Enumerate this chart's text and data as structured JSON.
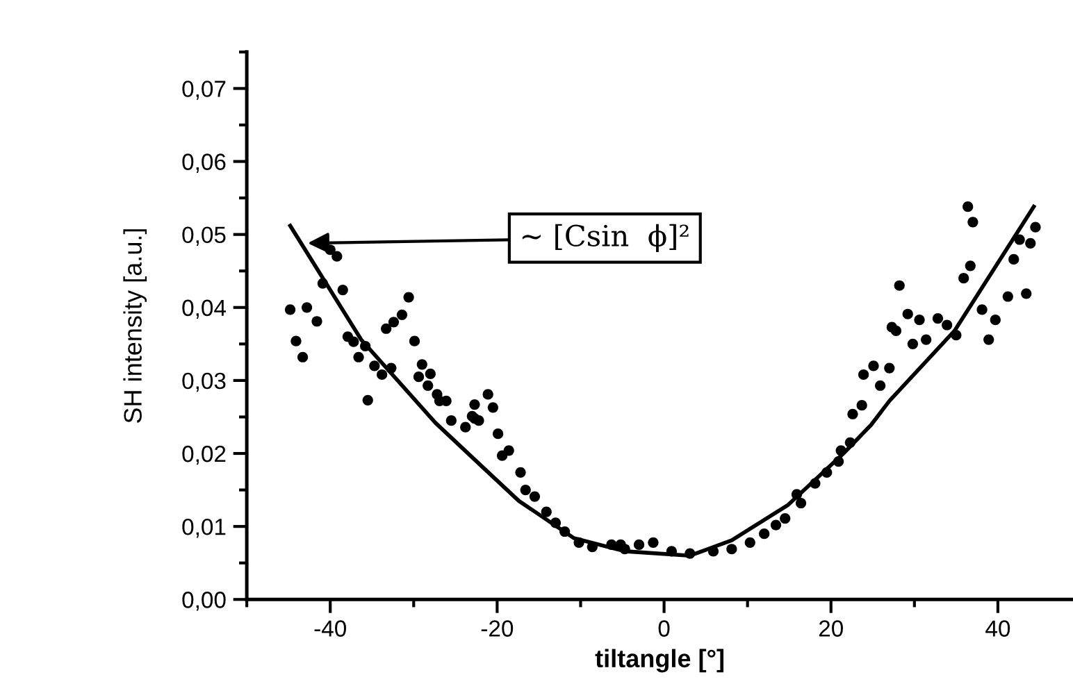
{
  "chart_data": {
    "type": "scatter",
    "xlabel": "tiltangle [°]",
    "ylabel": "SH intensity [a.u.]",
    "xlim": [
      -50,
      49
    ],
    "xticks": [
      -40,
      -20,
      0,
      20,
      40
    ],
    "ylim": [
      0,
      0.075
    ],
    "yticks": [
      {
        "value": 0,
        "label": "0,00"
      },
      {
        "value": 0.01,
        "label": "0,01"
      },
      {
        "value": 0.02,
        "label": "0,02"
      },
      {
        "value": 0.03,
        "label": "0,03"
      },
      {
        "value": 0.04,
        "label": "0,04"
      },
      {
        "value": 0.05,
        "label": "0,05"
      },
      {
        "value": 0.06,
        "label": "0,06"
      },
      {
        "value": 0.07,
        "label": "0,07"
      }
    ],
    "grid": false,
    "annotations": [
      {
        "text": "~ [Csin  ϕ]²",
        "x": -42.7,
        "y": 0.0488
      }
    ],
    "series": [
      {
        "color": "#000000",
        "marker": "circle",
        "x": [
          -40.0,
          -39.2,
          -40.9,
          -38.5,
          -44.8,
          -42.8,
          -41.6,
          -44.1,
          -43.3,
          -37.9,
          -37.2,
          -36.6,
          -35.8,
          -35.5,
          -34.7,
          -33.8,
          -33.3,
          -32.4,
          -31.4,
          -30.6,
          -29.9,
          -32.7,
          -29.0,
          -29.4,
          -28.0,
          -28.3,
          -27.2,
          -26.1,
          -26.9,
          -22.7,
          -21.1,
          -20.5,
          -25.5,
          -23.0,
          -22.2,
          -23.8,
          -22.7,
          -19.9,
          -18.6,
          -19.4,
          -17.2,
          -16.6,
          -15.5,
          -14.1,
          -13.0,
          -11.9,
          -10.2,
          -8.6,
          -6.3,
          -4.7,
          -3.0,
          -1.3,
          -5.2,
          0.9,
          3.1,
          5.9,
          8.1,
          10.3,
          12.0,
          13.4,
          14.5,
          16.4,
          15.9,
          18.1,
          19.5,
          20.9,
          21.2,
          22.3,
          22.6,
          23.7,
          23.9,
          25.1,
          27.0,
          25.9,
          27.3,
          27.8,
          28.2,
          29.2,
          30.6,
          29.8,
          31.4,
          32.8,
          33.9,
          35.0,
          35.9,
          36.7,
          36.4,
          37.0,
          38.1,
          38.9,
          39.7,
          41.2,
          43.4,
          41.9,
          42.6,
          43.9,
          44.5
        ],
        "values": [
          0.0479,
          0.047,
          0.0433,
          0.0424,
          0.0397,
          0.04,
          0.0381,
          0.0354,
          0.0332,
          0.036,
          0.0353,
          0.0332,
          0.0347,
          0.0273,
          0.032,
          0.0308,
          0.0371,
          0.038,
          0.039,
          0.0414,
          0.0354,
          0.0317,
          0.0322,
          0.0305,
          0.0309,
          0.0293,
          0.0281,
          0.0272,
          0.0272,
          0.0267,
          0.0281,
          0.0263,
          0.0245,
          0.0251,
          0.0245,
          0.0236,
          0.0248,
          0.0227,
          0.0204,
          0.0197,
          0.0174,
          0.015,
          0.0141,
          0.012,
          0.0105,
          0.0093,
          0.0078,
          0.0072,
          0.0075,
          0.0069,
          0.0075,
          0.0078,
          0.0075,
          0.0066,
          0.0063,
          0.0066,
          0.0069,
          0.0078,
          0.009,
          0.0102,
          0.0111,
          0.0132,
          0.0144,
          0.0159,
          0.0174,
          0.0189,
          0.0204,
          0.0215,
          0.0254,
          0.0266,
          0.0308,
          0.032,
          0.0317,
          0.0293,
          0.0373,
          0.0368,
          0.043,
          0.0391,
          0.0383,
          0.035,
          0.0356,
          0.0385,
          0.0376,
          0.0362,
          0.044,
          0.0457,
          0.0538,
          0.0517,
          0.0397,
          0.0356,
          0.0383,
          0.0415,
          0.0419,
          0.0466,
          0.0493,
          0.0488,
          0.051
        ]
      },
      {
        "type": "line",
        "color": "#000000",
        "marker": "none",
        "line_style": "solid",
        "x": [
          -44.8,
          -36.3,
          -27.4,
          -21.9,
          -17.4,
          -10.8,
          -4.7,
          3.1,
          8.1,
          14.8,
          21.5,
          24.8,
          27.0,
          34.8,
          44.3
        ],
        "values": [
          0.0512,
          0.0356,
          0.0242,
          0.0183,
          0.0135,
          0.0084,
          0.0066,
          0.006,
          0.0081,
          0.0129,
          0.02,
          0.0239,
          0.0272,
          0.0368,
          0.0538
        ]
      }
    ]
  }
}
